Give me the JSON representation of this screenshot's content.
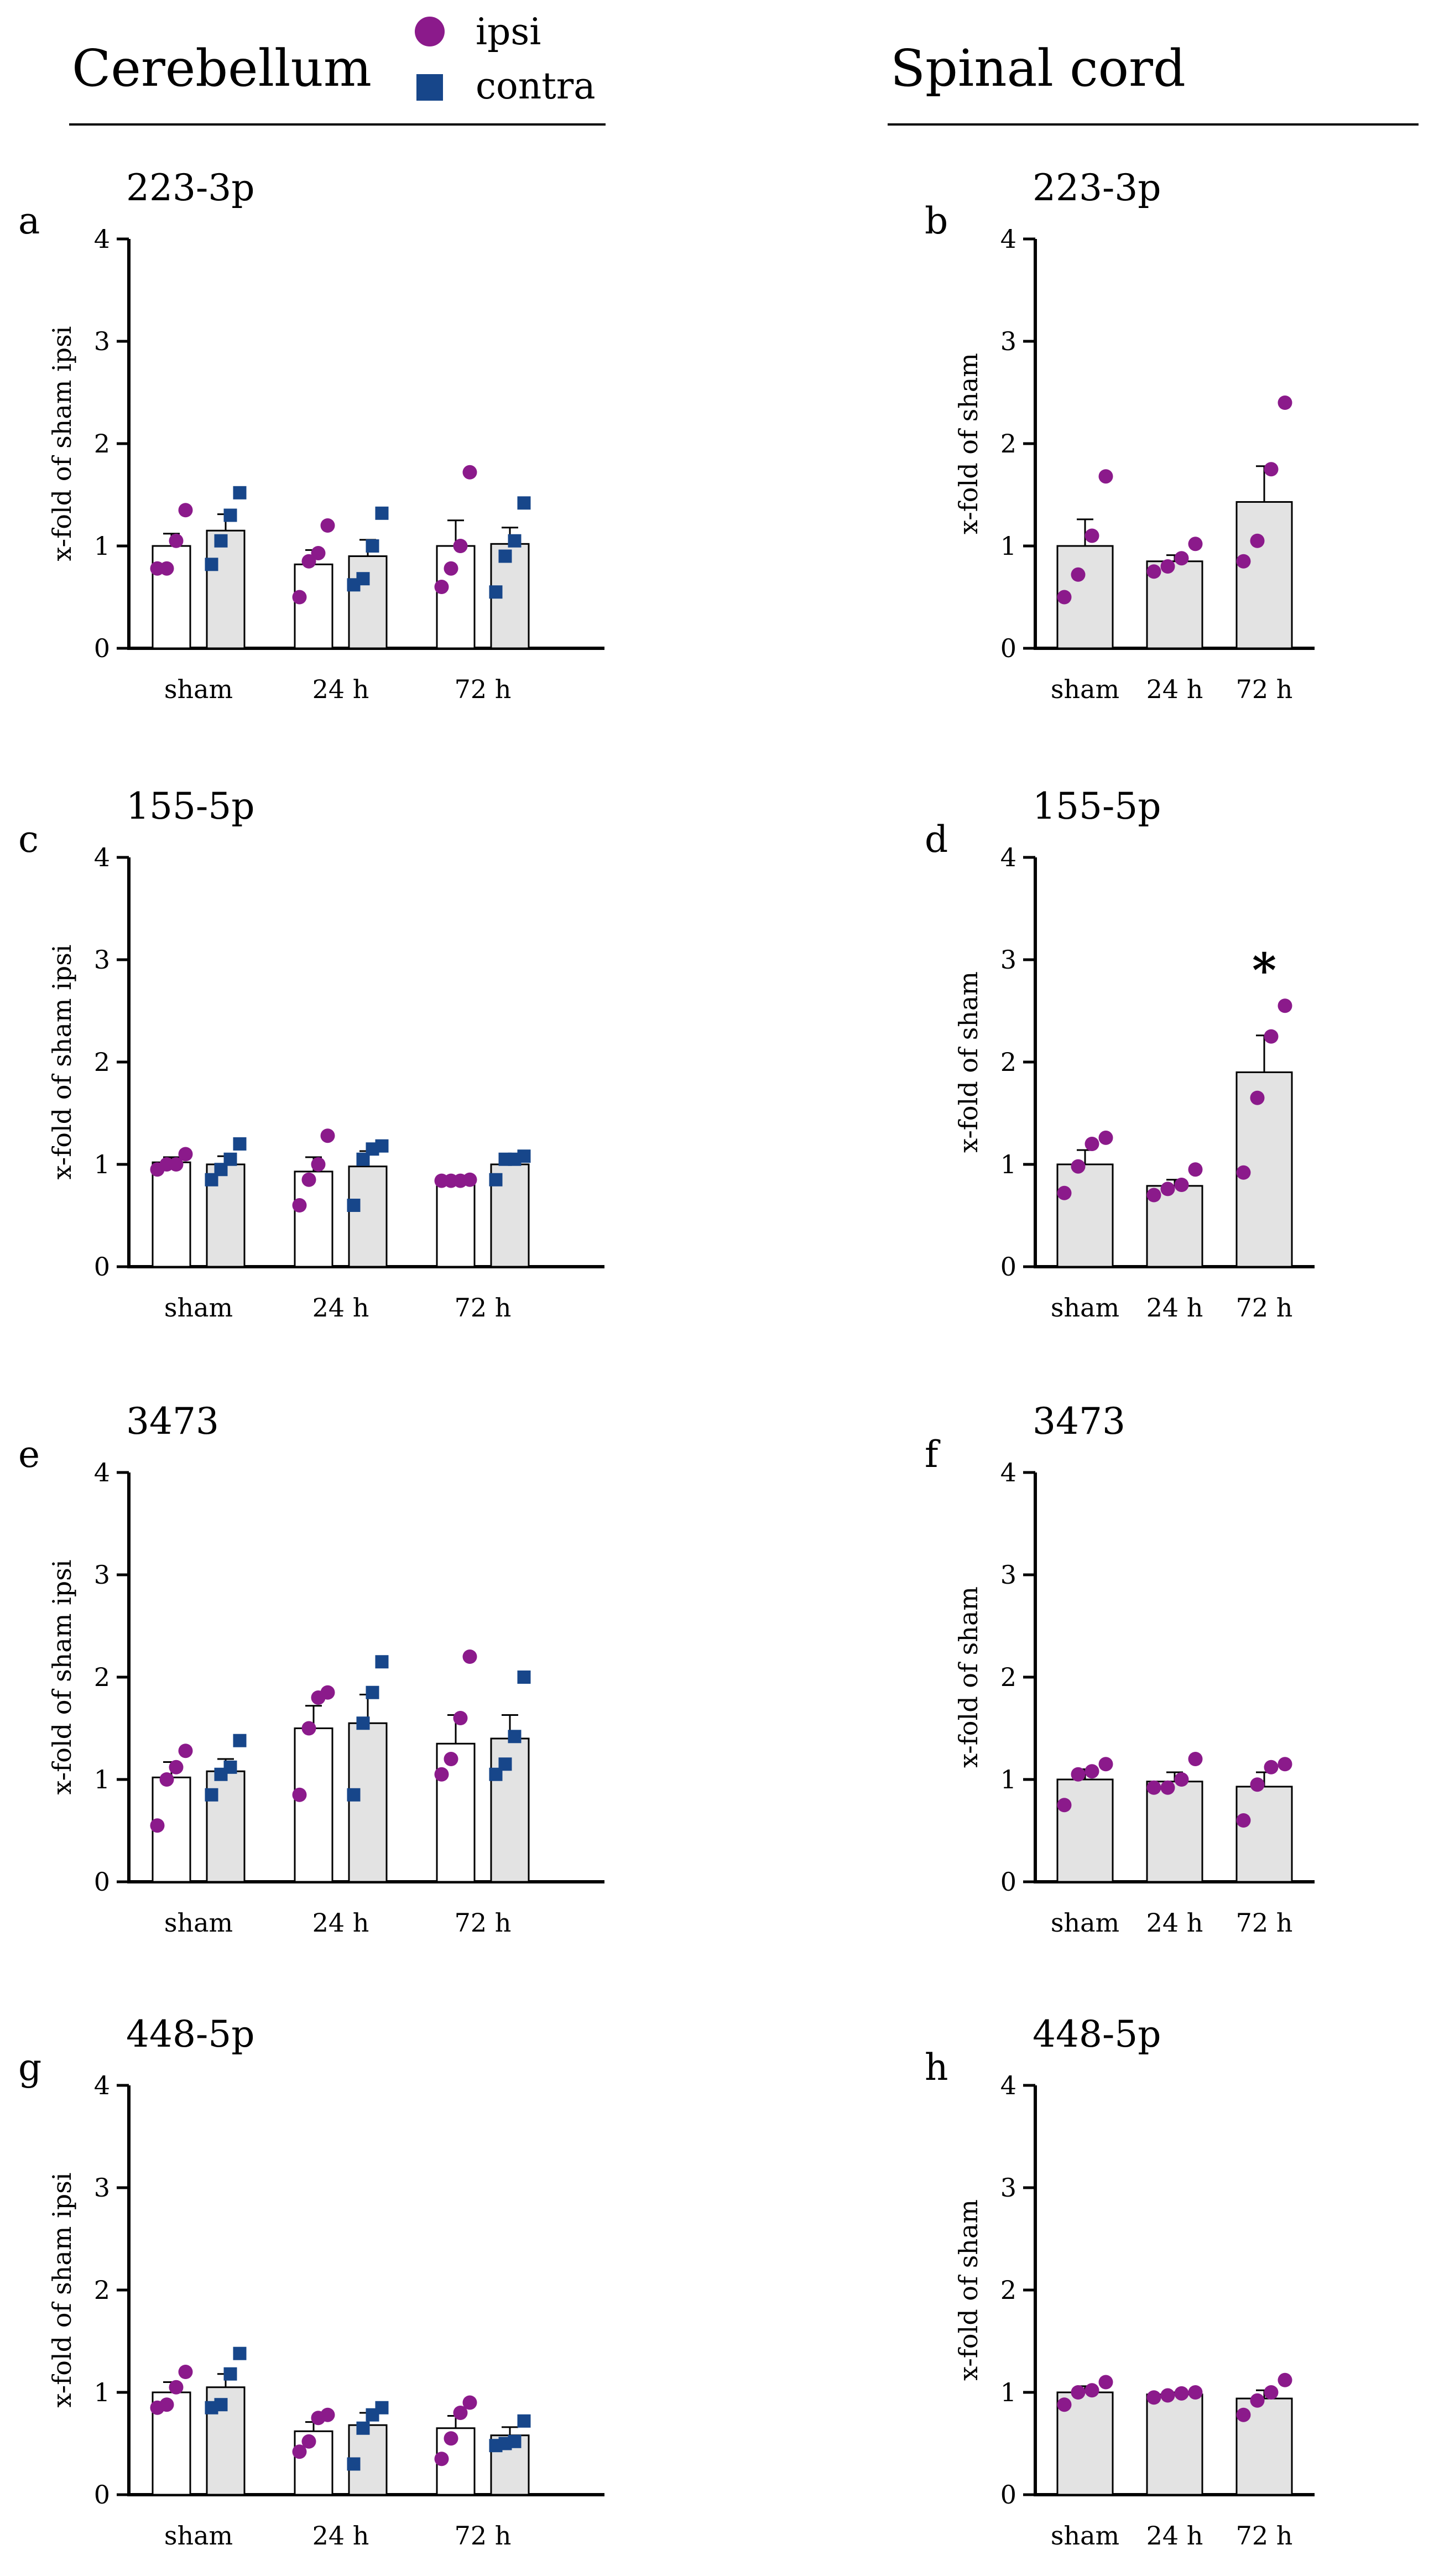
{
  "headers": {
    "left": "Cerebellum",
    "right": "Spinal cord"
  },
  "legend": {
    "ipsi": "ipsi",
    "contra": "contra"
  },
  "colors": {
    "ipsi": "#8B1A8B",
    "contra": "#17468A",
    "sham_bar": "#ffffff",
    "bar": "#e3e3e3",
    "axis": "#000000"
  },
  "chart_data": [
    {
      "panel": "a",
      "title": "223-3p",
      "type": "bar",
      "ylabel": "x-fold of sham ipsi",
      "ylim": [
        0,
        4
      ],
      "yticks": [
        "0",
        "1",
        "2",
        "3",
        "4"
      ],
      "categories": [
        "sham",
        "24 h",
        "72 h"
      ],
      "series": [
        {
          "name": "ipsi",
          "values": [
            1.0,
            0.82,
            1.0
          ],
          "sem": [
            0.12,
            0.14,
            0.25
          ],
          "points": [
            [
              0.78,
              0.78,
              1.05,
              1.35
            ],
            [
              0.5,
              0.85,
              0.93,
              1.2
            ],
            [
              0.6,
              0.78,
              1.0,
              1.72
            ]
          ]
        },
        {
          "name": "contra",
          "values": [
            1.15,
            0.9,
            1.02
          ],
          "sem": [
            0.16,
            0.16,
            0.16
          ],
          "points": [
            [
              0.82,
              1.05,
              1.3,
              1.52
            ],
            [
              0.62,
              0.68,
              1.0,
              1.32
            ],
            [
              0.55,
              0.9,
              1.05,
              1.42
            ]
          ]
        }
      ]
    },
    {
      "panel": "b",
      "title": "223-3p",
      "type": "bar",
      "ylabel": "x-fold of sham",
      "ylim": [
        0,
        4
      ],
      "yticks": [
        "0",
        "1",
        "2",
        "3",
        "4"
      ],
      "categories": [
        "sham",
        "24 h",
        "72 h"
      ],
      "series": [
        {
          "values": [
            1.0,
            0.85,
            1.43
          ],
          "sem": [
            0.26,
            0.06,
            0.35
          ],
          "points": [
            [
              0.5,
              0.72,
              1.1,
              1.68
            ],
            [
              0.75,
              0.8,
              0.88,
              1.02
            ],
            [
              0.85,
              1.05,
              1.75,
              2.4
            ]
          ]
        }
      ]
    },
    {
      "panel": "c",
      "title": "155-5p",
      "type": "bar",
      "ylabel": "x-fold of sham ipsi",
      "ylim": [
        0,
        4
      ],
      "yticks": [
        "0",
        "1",
        "2",
        "3",
        "4"
      ],
      "categories": [
        "sham",
        "24 h",
        "72 h"
      ],
      "series": [
        {
          "name": "ipsi",
          "values": [
            1.02,
            0.93,
            0.84
          ],
          "sem": [
            0.05,
            0.14,
            0.01
          ],
          "points": [
            [
              0.95,
              1.0,
              1.0,
              1.1
            ],
            [
              0.6,
              0.85,
              1.0,
              1.28
            ],
            [
              0.84,
              0.84,
              0.84,
              0.85
            ]
          ]
        },
        {
          "name": "contra",
          "values": [
            1.0,
            0.98,
            1.0
          ],
          "sem": [
            0.08,
            0.15,
            0.07
          ],
          "points": [
            [
              0.85,
              0.95,
              1.05,
              1.2
            ],
            [
              0.6,
              1.05,
              1.15,
              1.18
            ],
            [
              0.85,
              1.05,
              1.05,
              1.08
            ]
          ]
        }
      ]
    },
    {
      "panel": "d",
      "title": "155-5p",
      "type": "bar",
      "ylabel": "x-fold of sham",
      "ylim": [
        0,
        4
      ],
      "yticks": [
        "0",
        "1",
        "2",
        "3",
        "4"
      ],
      "categories": [
        "sham",
        "24 h",
        "72 h"
      ],
      "series": [
        {
          "values": [
            1.0,
            0.79,
            1.9
          ],
          "sem": [
            0.14,
            0.06,
            0.36
          ],
          "points": [
            [
              0.72,
              0.98,
              1.2,
              1.26
            ],
            [
              0.7,
              0.76,
              0.8,
              0.95
            ],
            [
              0.92,
              1.65,
              2.25,
              2.55
            ]
          ]
        }
      ],
      "annotations": [
        "*"
      ]
    },
    {
      "panel": "e",
      "title": "3473",
      "type": "bar",
      "ylabel": "x-fold of sham ipsi",
      "ylim": [
        0,
        4
      ],
      "yticks": [
        "0",
        "1",
        "2",
        "3",
        "4"
      ],
      "categories": [
        "sham",
        "24 h",
        "72 h"
      ],
      "series": [
        {
          "name": "ipsi",
          "values": [
            1.02,
            1.5,
            1.35
          ],
          "sem": [
            0.15,
            0.22,
            0.28
          ],
          "points": [
            [
              0.55,
              1.0,
              1.12,
              1.28
            ],
            [
              0.85,
              1.5,
              1.8,
              1.85
            ],
            [
              1.05,
              1.2,
              1.6,
              2.2
            ]
          ]
        },
        {
          "name": "contra",
          "values": [
            1.08,
            1.55,
            1.4
          ],
          "sem": [
            0.12,
            0.28,
            0.23
          ],
          "points": [
            [
              0.85,
              1.05,
              1.12,
              1.38
            ],
            [
              0.85,
              1.55,
              1.85,
              2.15
            ],
            [
              1.05,
              1.15,
              1.42,
              2.0
            ]
          ]
        }
      ]
    },
    {
      "panel": "f",
      "title": "3473",
      "type": "bar",
      "ylabel": "x-fold of sham",
      "ylim": [
        0,
        4
      ],
      "yticks": [
        "0",
        "1",
        "2",
        "3",
        "4"
      ],
      "categories": [
        "sham",
        "24 h",
        "72 h"
      ],
      "series": [
        {
          "values": [
            1.0,
            0.98,
            0.93
          ],
          "sem": [
            0.1,
            0.09,
            0.14
          ],
          "points": [
            [
              0.75,
              1.05,
              1.08,
              1.15
            ],
            [
              0.92,
              0.92,
              1.0,
              1.2
            ],
            [
              0.6,
              0.95,
              1.12,
              1.15
            ]
          ]
        }
      ]
    },
    {
      "panel": "g",
      "title": "448-5p",
      "type": "bar",
      "ylabel": "x-fold of sham ipsi",
      "ylim": [
        0,
        4
      ],
      "yticks": [
        "0",
        "1",
        "2",
        "3",
        "4"
      ],
      "categories": [
        "sham",
        "24 h",
        "72 h"
      ],
      "series": [
        {
          "name": "ipsi",
          "values": [
            1.0,
            0.62,
            0.65
          ],
          "sem": [
            0.1,
            0.09,
            0.12
          ],
          "points": [
            [
              0.85,
              0.88,
              1.05,
              1.2
            ],
            [
              0.42,
              0.52,
              0.75,
              0.78
            ],
            [
              0.35,
              0.55,
              0.8,
              0.9
            ]
          ]
        },
        {
          "name": "contra",
          "values": [
            1.05,
            0.68,
            0.58
          ],
          "sem": [
            0.13,
            0.12,
            0.08
          ],
          "points": [
            [
              0.85,
              0.88,
              1.18,
              1.38
            ],
            [
              0.3,
              0.65,
              0.78,
              0.85
            ],
            [
              0.48,
              0.5,
              0.52,
              0.72
            ]
          ]
        }
      ]
    },
    {
      "panel": "h",
      "title": "448-5p",
      "type": "bar",
      "ylabel": "x-fold of sham",
      "ylim": [
        0,
        4
      ],
      "yticks": [
        "0",
        "1",
        "2",
        "3",
        "4"
      ],
      "categories": [
        "sham",
        "24 h",
        "72 h"
      ],
      "series": [
        {
          "values": [
            1.0,
            0.98,
            0.94
          ],
          "sem": [
            0.06,
            0.02,
            0.08
          ],
          "points": [
            [
              0.88,
              1.0,
              1.02,
              1.1
            ],
            [
              0.95,
              0.97,
              0.99,
              1.0
            ],
            [
              0.78,
              0.92,
              1.0,
              1.12
            ]
          ]
        }
      ]
    }
  ]
}
